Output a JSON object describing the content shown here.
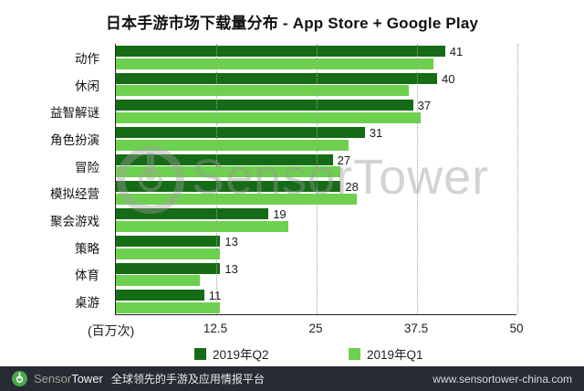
{
  "title": "日本手游市场下载量分布 - App Store + Google Play",
  "chart_data": {
    "type": "bar",
    "orientation": "horizontal",
    "title": "日本手游市场下载量分布 - App Store + Google Play",
    "categories": [
      "动作",
      "休闲",
      "益智解谜",
      "角色扮演",
      "冒险",
      "模拟经营",
      "聚会游戏",
      "策略",
      "体育",
      "桌游"
    ],
    "series": [
      {
        "name": "2019年Q2",
        "color": "#166c16",
        "values": [
          41,
          40,
          37,
          31,
          27,
          28,
          19,
          13,
          13,
          11
        ],
        "value_labels": [
          "41",
          "40",
          "37",
          "31",
          "27",
          "28",
          "19",
          "13",
          "13",
          "11"
        ]
      },
      {
        "name": "2019年Q1",
        "color": "#6ed04f",
        "values": [
          39.5,
          36.5,
          38,
          29,
          28,
          30,
          21.5,
          13,
          10.5,
          13
        ],
        "value_labels": []
      }
    ],
    "xlabel": "(百万次)",
    "xticks": [
      12.5,
      25,
      37.5,
      50
    ],
    "xlim": [
      0,
      50
    ],
    "grid": "dotted-vertical",
    "legend_position": "bottom"
  },
  "legend": {
    "items": [
      {
        "label": "2019年Q2",
        "color": "#166c16"
      },
      {
        "label": "2019年Q1",
        "color": "#6ed04f"
      }
    ]
  },
  "watermark": {
    "text": "SensorTower"
  },
  "footer": {
    "brand_sensor": "Sensor",
    "brand_tower": "Tower",
    "tagline": "全球领先的手游及应用情报平台",
    "url": "www.sensortower-china.com",
    "logo_color": "#45a94b",
    "background": "#272b33"
  },
  "colors": {
    "q2_bar": "#166c16",
    "q1_bar": "#6ed04f",
    "axis": "#222222",
    "gridline": "#9f9f9f"
  }
}
